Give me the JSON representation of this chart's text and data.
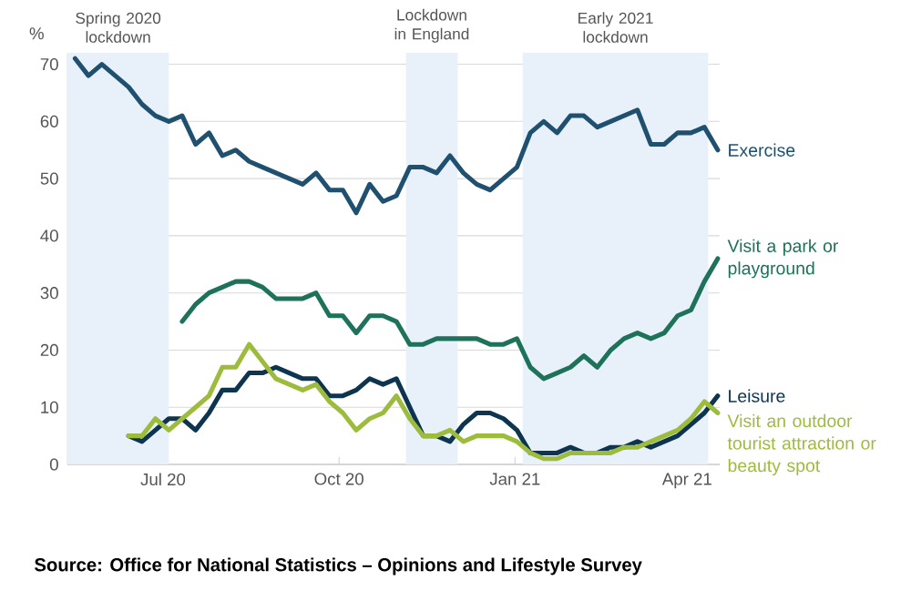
{
  "chart_data": {
    "type": "line",
    "ylabel": "%",
    "xlim": [
      "2020-05-12",
      "2021-04-18"
    ],
    "ylim": [
      0,
      72
    ],
    "xticks": [
      {
        "value": "2020-07-01",
        "label": "Jul 20"
      },
      {
        "value": "2020-10-01",
        "label": "Oct 20"
      },
      {
        "value": "2021-01-01",
        "label": "Jan 21"
      },
      {
        "value": "2021-04-01",
        "label": "Apr 21"
      }
    ],
    "yticks": [
      0,
      10,
      20,
      30,
      40,
      50,
      60,
      70
    ],
    "grid": "y",
    "bands": [
      {
        "axis": "x",
        "from": "2020-05-12",
        "to": "2020-07-04",
        "label": "Spring 2020 lockdown",
        "color": "#e8f1fa"
      },
      {
        "axis": "x",
        "from": "2020-11-05",
        "to": "2020-12-02",
        "label": "Lockdown in England",
        "color": "#e8f1fa"
      },
      {
        "axis": "x",
        "from": "2021-01-05",
        "to": "2021-04-12",
        "label": "Early 2021 lockdown",
        "color": "#e8f1fa"
      }
    ],
    "series": [
      {
        "name": "Exercise",
        "color": "#1f5070",
        "x": [
          "2020-05-16",
          "2020-05-23",
          "2020-05-30",
          "2020-06-06",
          "2020-06-13",
          "2020-06-20",
          "2020-06-27",
          "2020-07-04",
          "2020-07-11",
          "2020-07-18",
          "2020-07-25",
          "2020-08-01",
          "2020-08-08",
          "2020-08-15",
          "2020-08-22",
          "2020-09-05",
          "2020-09-12",
          "2020-09-19",
          "2020-09-26",
          "2020-10-03",
          "2020-10-10",
          "2020-10-17",
          "2020-10-24",
          "2020-10-31",
          "2020-11-07",
          "2020-11-14",
          "2020-11-21",
          "2020-11-28",
          "2020-12-05",
          "2020-12-12",
          "2020-12-19",
          "2020-12-26",
          "2021-01-02",
          "2021-01-09",
          "2021-01-16",
          "2021-01-23",
          "2021-01-30",
          "2021-02-06",
          "2021-02-13",
          "2021-02-20",
          "2021-02-27",
          "2021-03-06",
          "2021-03-13",
          "2021-03-20",
          "2021-03-27",
          "2021-04-03",
          "2021-04-10",
          "2021-04-17"
        ],
        "values": [
          71,
          68,
          70,
          68,
          66,
          63,
          61,
          60,
          61,
          56,
          58,
          54,
          55,
          53,
          52,
          50,
          49,
          51,
          48,
          48,
          44,
          49,
          46,
          47,
          52,
          52,
          51,
          54,
          51,
          49,
          48,
          50,
          52,
          58,
          60,
          58,
          61,
          61,
          59,
          60,
          61,
          62,
          56,
          56,
          58,
          58,
          59,
          55
        ]
      },
      {
        "name": "Visit a park or playground",
        "color": "#1d7259",
        "x": [
          "2020-07-11",
          "2020-07-18",
          "2020-07-25",
          "2020-08-01",
          "2020-08-08",
          "2020-08-15",
          "2020-08-22",
          "2020-08-29",
          "2020-09-05",
          "2020-09-12",
          "2020-09-19",
          "2020-09-26",
          "2020-10-03",
          "2020-10-10",
          "2020-10-17",
          "2020-10-24",
          "2020-10-31",
          "2020-11-07",
          "2020-11-14",
          "2020-11-21",
          "2020-11-28",
          "2020-12-05",
          "2020-12-12",
          "2020-12-19",
          "2020-12-26",
          "2021-01-02",
          "2021-01-09",
          "2021-01-16",
          "2021-01-23",
          "2021-01-30",
          "2021-02-06",
          "2021-02-13",
          "2021-02-20",
          "2021-02-27",
          "2021-03-06",
          "2021-03-13",
          "2021-03-20",
          "2021-03-27",
          "2021-04-03",
          "2021-04-10",
          "2021-04-17"
        ],
        "values": [
          25,
          28,
          30,
          31,
          32,
          32,
          31,
          29,
          29,
          29,
          30,
          26,
          26,
          23,
          26,
          26,
          25,
          21,
          21,
          22,
          22,
          22,
          22,
          21,
          21,
          22,
          17,
          15,
          16,
          17,
          19,
          17,
          20,
          22,
          23,
          22,
          23,
          26,
          27,
          32,
          36
        ]
      },
      {
        "name": "Leisure",
        "color": "#0e3550",
        "x": [
          "2020-06-13",
          "2020-06-20",
          "2020-06-27",
          "2020-07-04",
          "2020-07-11",
          "2020-07-18",
          "2020-07-25",
          "2020-08-01",
          "2020-08-08",
          "2020-08-15",
          "2020-08-22",
          "2020-08-29",
          "2020-09-05",
          "2020-09-12",
          "2020-09-19",
          "2020-09-26",
          "2020-10-03",
          "2020-10-10",
          "2020-10-17",
          "2020-10-24",
          "2020-10-31",
          "2020-11-07",
          "2020-11-14",
          "2020-11-21",
          "2020-11-28",
          "2020-12-05",
          "2020-12-12",
          "2020-12-19",
          "2020-12-26",
          "2021-01-02",
          "2021-01-09",
          "2021-01-16",
          "2021-01-23",
          "2021-01-30",
          "2021-02-06",
          "2021-02-13",
          "2021-02-20",
          "2021-02-27",
          "2021-03-06",
          "2021-03-13",
          "2021-03-20",
          "2021-03-27",
          "2021-04-03",
          "2021-04-10",
          "2021-04-17"
        ],
        "values": [
          5,
          4,
          6,
          8,
          8,
          6,
          9,
          13,
          13,
          16,
          16,
          17,
          16,
          15,
          15,
          12,
          12,
          13,
          15,
          14,
          15,
          10,
          5,
          5,
          4,
          7,
          9,
          9,
          8,
          6,
          2,
          2,
          2,
          3,
          2,
          2,
          3,
          3,
          4,
          3,
          4,
          5,
          7,
          9,
          12
        ]
      },
      {
        "name": "Visit an outdoor tourist attraction or beauty spot",
        "color": "#9dbb3c",
        "x": [
          "2020-06-13",
          "2020-06-20",
          "2020-06-27",
          "2020-07-04",
          "2020-07-11",
          "2020-07-18",
          "2020-07-25",
          "2020-08-01",
          "2020-08-08",
          "2020-08-15",
          "2020-08-22",
          "2020-08-29",
          "2020-09-05",
          "2020-09-12",
          "2020-09-19",
          "2020-09-26",
          "2020-10-03",
          "2020-10-10",
          "2020-10-17",
          "2020-10-24",
          "2020-10-31",
          "2020-11-07",
          "2020-11-14",
          "2020-11-21",
          "2020-11-28",
          "2020-12-05",
          "2020-12-12",
          "2020-12-19",
          "2020-12-26",
          "2021-01-02",
          "2021-01-09",
          "2021-01-16",
          "2021-01-23",
          "2021-01-30",
          "2021-02-06",
          "2021-02-13",
          "2021-02-20",
          "2021-02-27",
          "2021-03-06",
          "2021-03-13",
          "2021-03-20",
          "2021-03-27",
          "2021-04-03",
          "2021-04-10",
          "2021-04-17"
        ],
        "values": [
          5,
          5,
          8,
          6,
          8,
          10,
          12,
          17,
          17,
          21,
          18,
          15,
          14,
          13,
          14,
          11,
          9,
          6,
          8,
          9,
          12,
          8,
          5,
          5,
          6,
          4,
          5,
          5,
          5,
          4,
          2,
          1,
          1,
          2,
          2,
          2,
          2,
          3,
          3,
          4,
          5,
          6,
          8,
          11,
          9
        ]
      }
    ],
    "annotations": [
      "Source: Office for National Statistics – Opinions and Lifestyle Survey"
    ]
  }
}
